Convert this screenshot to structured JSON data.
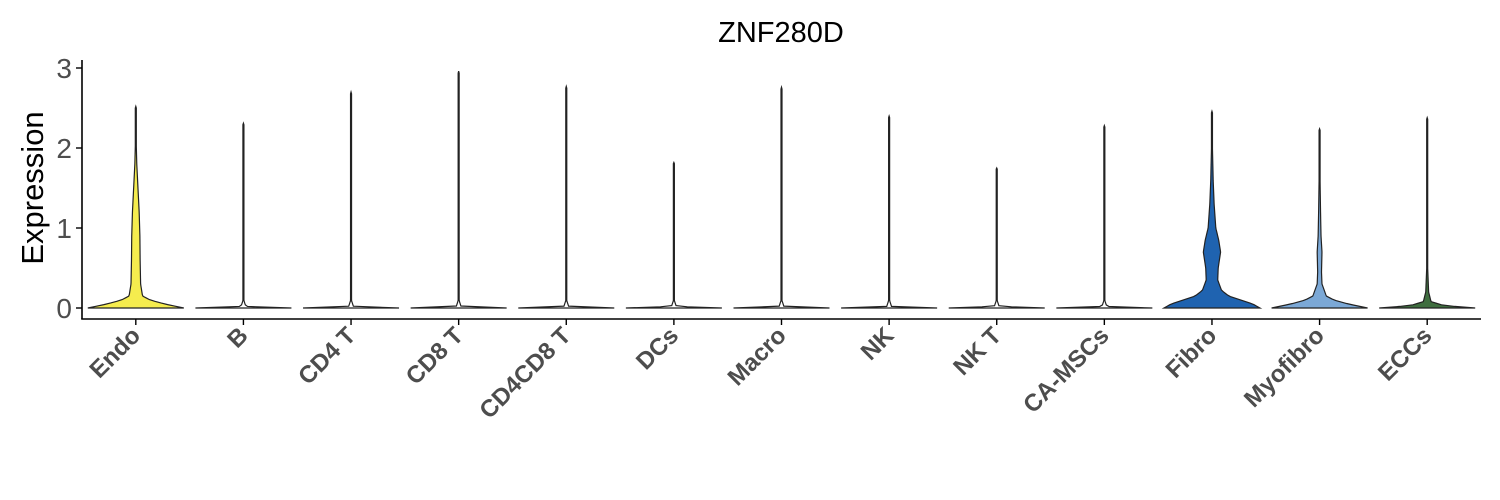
{
  "chart_data": {
    "type": "violin",
    "title": "ZNF280D",
    "xlabel": "",
    "ylabel": "Expression",
    "ylim": [
      -0.15,
      3.1
    ],
    "yticks": [
      0,
      1,
      2,
      3
    ],
    "grid": false,
    "legend": "none",
    "categories": [
      "Endo",
      "B",
      "CD4 T",
      "CD8 T",
      "CD4CD8 T",
      "DCs",
      "Macro",
      "NK",
      "NK T",
      "CA-MSCs",
      "Fibro",
      "Myofibro",
      "ECCs"
    ],
    "series": [
      {
        "category": "Endo",
        "max": 2.52,
        "color": "#f5ec4e",
        "profile": [
          [
            0,
            1.0
          ],
          [
            0.05,
            0.6
          ],
          [
            0.1,
            0.3
          ],
          [
            0.15,
            0.14
          ],
          [
            0.3,
            0.1
          ],
          [
            0.6,
            0.09
          ],
          [
            0.9,
            0.085
          ],
          [
            1.2,
            0.07
          ],
          [
            1.5,
            0.045
          ],
          [
            1.8,
            0.02
          ],
          [
            2.1,
            0.007
          ],
          [
            2.52,
            0.0
          ]
        ]
      },
      {
        "category": "B",
        "max": 2.31,
        "color": "#ffffff",
        "profile": [
          [
            0,
            1.0
          ],
          [
            0.02,
            0.05
          ],
          [
            0.1,
            0.006
          ],
          [
            2.31,
            0.0
          ]
        ]
      },
      {
        "category": "CD4 T",
        "max": 2.7,
        "color": "#ffffff",
        "profile": [
          [
            0,
            1.0
          ],
          [
            0.02,
            0.05
          ],
          [
            0.1,
            0.006
          ],
          [
            2.7,
            0.0
          ]
        ]
      },
      {
        "category": "CD8 T",
        "max": 2.96,
        "color": "#ffffff",
        "profile": [
          [
            0,
            1.0
          ],
          [
            0.02,
            0.05
          ],
          [
            0.1,
            0.006
          ],
          [
            2.96,
            0.0
          ]
        ]
      },
      {
        "category": "CD4CD8 T",
        "max": 2.77,
        "color": "#ffffff",
        "profile": [
          [
            0,
            1.0
          ],
          [
            0.02,
            0.05
          ],
          [
            0.1,
            0.006
          ],
          [
            2.77,
            0.0
          ]
        ]
      },
      {
        "category": "DCs",
        "max": 1.82,
        "color": "#ffffff",
        "profile": [
          [
            0,
            1.0
          ],
          [
            0.02,
            0.05
          ],
          [
            0.1,
            0.006
          ],
          [
            1.82,
            0.0
          ]
        ]
      },
      {
        "category": "Macro",
        "max": 2.76,
        "color": "#ffffff",
        "profile": [
          [
            0,
            1.0
          ],
          [
            0.02,
            0.05
          ],
          [
            0.1,
            0.006
          ],
          [
            2.76,
            0.0
          ]
        ]
      },
      {
        "category": "NK",
        "max": 2.4,
        "color": "#ffffff",
        "profile": [
          [
            0,
            1.0
          ],
          [
            0.02,
            0.05
          ],
          [
            0.1,
            0.006
          ],
          [
            2.4,
            0.0
          ]
        ]
      },
      {
        "category": "NK T",
        "max": 1.75,
        "color": "#ffffff",
        "profile": [
          [
            0,
            1.0
          ],
          [
            0.02,
            0.05
          ],
          [
            0.1,
            0.006
          ],
          [
            1.75,
            0.0
          ]
        ]
      },
      {
        "category": "CA-MSCs",
        "max": 2.28,
        "color": "#ffffff",
        "profile": [
          [
            0,
            1.0
          ],
          [
            0.02,
            0.05
          ],
          [
            0.1,
            0.006
          ],
          [
            2.28,
            0.0
          ]
        ]
      },
      {
        "category": "Fibro",
        "max": 2.46,
        "color": "#1f63b0",
        "profile": [
          [
            0,
            1.0
          ],
          [
            0.05,
            0.85
          ],
          [
            0.1,
            0.6
          ],
          [
            0.15,
            0.35
          ],
          [
            0.22,
            0.2
          ],
          [
            0.35,
            0.12
          ],
          [
            0.5,
            0.13
          ],
          [
            0.7,
            0.18
          ],
          [
            0.85,
            0.14
          ],
          [
            1.0,
            0.08
          ],
          [
            1.3,
            0.045
          ],
          [
            1.6,
            0.025
          ],
          [
            2.0,
            0.01
          ],
          [
            2.46,
            0.0
          ]
        ]
      },
      {
        "category": "Myofibro",
        "max": 2.24,
        "color": "#7ba8d6",
        "profile": [
          [
            0,
            1.0
          ],
          [
            0.05,
            0.6
          ],
          [
            0.1,
            0.3
          ],
          [
            0.15,
            0.14
          ],
          [
            0.3,
            0.05
          ],
          [
            0.45,
            0.04
          ],
          [
            0.7,
            0.05
          ],
          [
            0.9,
            0.03
          ],
          [
            1.2,
            0.02
          ],
          [
            1.6,
            0.01
          ],
          [
            2.0,
            0.004
          ],
          [
            2.24,
            0.0
          ]
        ]
      },
      {
        "category": "ECCs",
        "max": 2.38,
        "color": "#3f6e3f",
        "profile": [
          [
            0,
            1.0
          ],
          [
            0.03,
            0.35
          ],
          [
            0.08,
            0.08
          ],
          [
            0.2,
            0.03
          ],
          [
            0.5,
            0.01
          ],
          [
            1.0,
            0.005
          ],
          [
            2.38,
            0.0
          ]
        ]
      }
    ]
  }
}
